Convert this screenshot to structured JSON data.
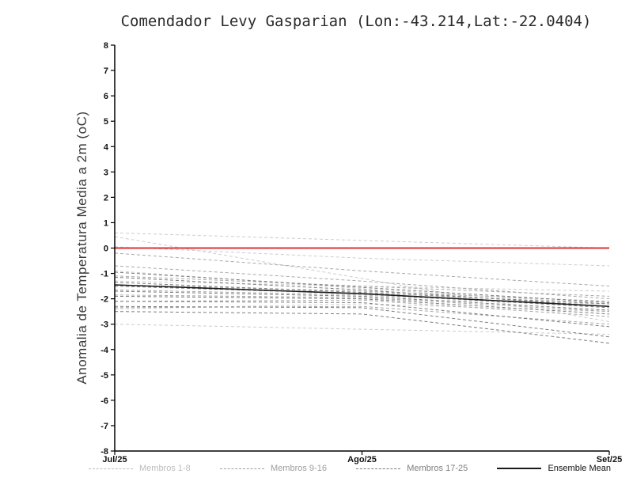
{
  "title": "Comendador Levy Gasparian (Lon:-43.214,Lat:-22.0404)",
  "y_axis_label": "Anomalia de Temperatura Media a 2m (oC)",
  "chart_data": {
    "type": "line",
    "x_categories": [
      "Jul/25",
      "Ago/25",
      "Set/25"
    ],
    "ylim": [
      -8,
      8
    ],
    "y_tick_step": 1,
    "grid": false,
    "legend_position": "bottom",
    "zero_line": {
      "label": "zero anomaly reference",
      "color": "#e03131",
      "values": [
        0,
        0,
        0
      ]
    },
    "groups": [
      {
        "name": "Membros 1-8",
        "color": "#cdcdcd",
        "dash": "4,3",
        "members": [
          [
            0.6,
            0.3,
            0.0
          ],
          [
            0.45,
            -1.2,
            -2.9
          ],
          [
            0.05,
            -0.4,
            -0.7
          ],
          [
            -0.9,
            -1.6,
            -2.2
          ],
          [
            -1.3,
            -1.5,
            -1.7
          ],
          [
            -1.9,
            -2.0,
            -2.2
          ],
          [
            -2.4,
            -2.2,
            -2.5
          ],
          [
            -3.0,
            -3.2,
            -3.4
          ]
        ]
      },
      {
        "name": "Membros 9-16",
        "color": "#a9a9a9",
        "dash": "4,3",
        "members": [
          [
            -0.2,
            -0.9,
            -1.5
          ],
          [
            -0.7,
            -1.3,
            -2.0
          ],
          [
            -1.1,
            -1.5,
            -1.9
          ],
          [
            -1.45,
            -1.7,
            -2.1
          ],
          [
            -1.65,
            -1.85,
            -2.3
          ],
          [
            -1.85,
            -1.95,
            -2.5
          ],
          [
            -2.1,
            -2.05,
            -2.7
          ],
          [
            -2.35,
            -2.3,
            -3.0
          ]
        ]
      },
      {
        "name": "Membros 17-25",
        "color": "#7d7d7d",
        "dash": "4,3",
        "members": [
          [
            -0.95,
            -1.55,
            -2.15
          ],
          [
            -1.15,
            -1.65,
            -2.3
          ],
          [
            -1.35,
            -1.75,
            -2.2
          ],
          [
            -1.5,
            -1.8,
            -2.35
          ],
          [
            -1.7,
            -1.9,
            -2.45
          ],
          [
            -1.9,
            -2.0,
            -2.6
          ],
          [
            -2.1,
            -2.15,
            -3.1
          ],
          [
            -2.3,
            -2.35,
            -3.5
          ],
          [
            -2.5,
            -2.6,
            -3.75
          ]
        ]
      }
    ],
    "ensemble_mean": {
      "name": "Ensemble Mean",
      "color": "#1a1a1a",
      "values": [
        -1.45,
        -1.8,
        -2.3
      ]
    }
  },
  "legend": [
    {
      "label": "Membros 1-8",
      "color": "#bdbdbd",
      "dash": true
    },
    {
      "label": "Membros 9-16",
      "color": "#9e9e9e",
      "dash": true
    },
    {
      "label": "Membros 17-25",
      "color": "#7d7d7d",
      "dash": true
    },
    {
      "label": "Ensemble Mean",
      "color": "#1a1a1a",
      "dash": false
    }
  ]
}
